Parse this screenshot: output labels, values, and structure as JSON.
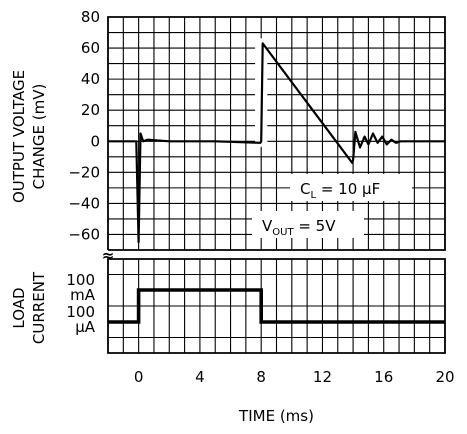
{
  "chart_data": [
    {
      "type": "line",
      "panel": "upper",
      "ylabel_lines": [
        "OUTPUT VOLTAGE",
        "CHANGE (mV)"
      ],
      "ylim": [
        -70,
        80
      ],
      "yticks": [
        80,
        60,
        40,
        20,
        0,
        -20,
        -40,
        -60
      ],
      "ytick_labels": [
        "80",
        "60",
        "40",
        "20",
        "0",
        "−20",
        "−40",
        "−60"
      ],
      "grid": true,
      "series": [
        {
          "x": [
            -2,
            -0.15,
            0.0,
            0.12,
            0.3,
            0.6,
            2,
            5,
            7.95,
            8.0,
            8.1,
            13.95,
            14.0,
            14.15,
            14.45,
            14.75,
            15.0,
            15.3,
            15.6,
            15.9,
            16.2,
            16.5,
            16.8,
            17.1,
            17.5,
            18,
            20
          ],
          "y": [
            0,
            0,
            -65,
            5,
            0,
            1,
            0,
            0,
            -1,
            0,
            63,
            -14,
            -12,
            6,
            -4,
            3,
            -2,
            5,
            -1,
            3,
            -2,
            1,
            -1,
            0,
            0,
            0,
            0
          ]
        }
      ],
      "annotations": [
        {
          "main": "C",
          "sub": "L",
          "rest": " = 10 μF"
        },
        {
          "main": "V",
          "sub": "OUT",
          "rest": " = 5V"
        }
      ]
    },
    {
      "type": "line",
      "panel": "lower",
      "ylabel_lines": [
        "LOAD",
        "CURRENT"
      ],
      "levels": [
        {
          "value": "100",
          "unit": "mA"
        },
        {
          "value": "100",
          "unit": "μA"
        }
      ],
      "series": [
        {
          "x": [
            -2,
            0,
            0,
            8,
            8,
            20
          ],
          "y": [
            "100 μA",
            "100 μA",
            "100 mA",
            "100 mA",
            "100 μA",
            "100 μA"
          ]
        }
      ],
      "xlim": [
        -2,
        20
      ],
      "xticks": [
        0,
        4,
        8,
        12,
        16,
        20
      ],
      "xtick_labels": [
        "0",
        "4",
        "8",
        "12",
        "16",
        "20"
      ],
      "xlabel": "TIME (ms)",
      "grid": true
    }
  ],
  "axis_break_symbol": "≈"
}
